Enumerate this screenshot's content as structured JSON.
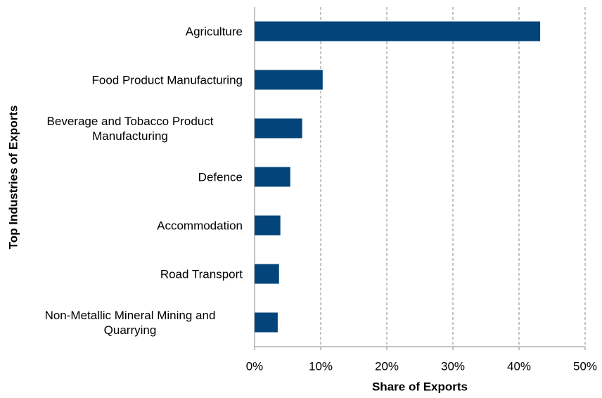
{
  "chart_data": {
    "type": "barh",
    "x_label": "Share of Exports",
    "y_label": "Top Industries of Exports",
    "categories": [
      "Agriculture",
      "Food Product Manufacturing",
      "Beverage and Tobacco Product Manufacturing",
      "Defence",
      "Accommodation",
      "Road Transport",
      "Non-Metallic Mineral Mining and Quarrying"
    ],
    "values": [
      43.2,
      10.3,
      7.2,
      5.4,
      3.9,
      3.7,
      3.5
    ],
    "color": "#03457a",
    "xlim": [
      0,
      50
    ],
    "xticks": [
      {
        "value": 0,
        "label": "0%"
      },
      {
        "value": 10,
        "label": "10%"
      },
      {
        "value": 20,
        "label": "20%"
      },
      {
        "value": 30,
        "label": "30%"
      },
      {
        "value": 40,
        "label": "40%"
      },
      {
        "value": 50,
        "label": "50%"
      }
    ],
    "grid": true
  }
}
